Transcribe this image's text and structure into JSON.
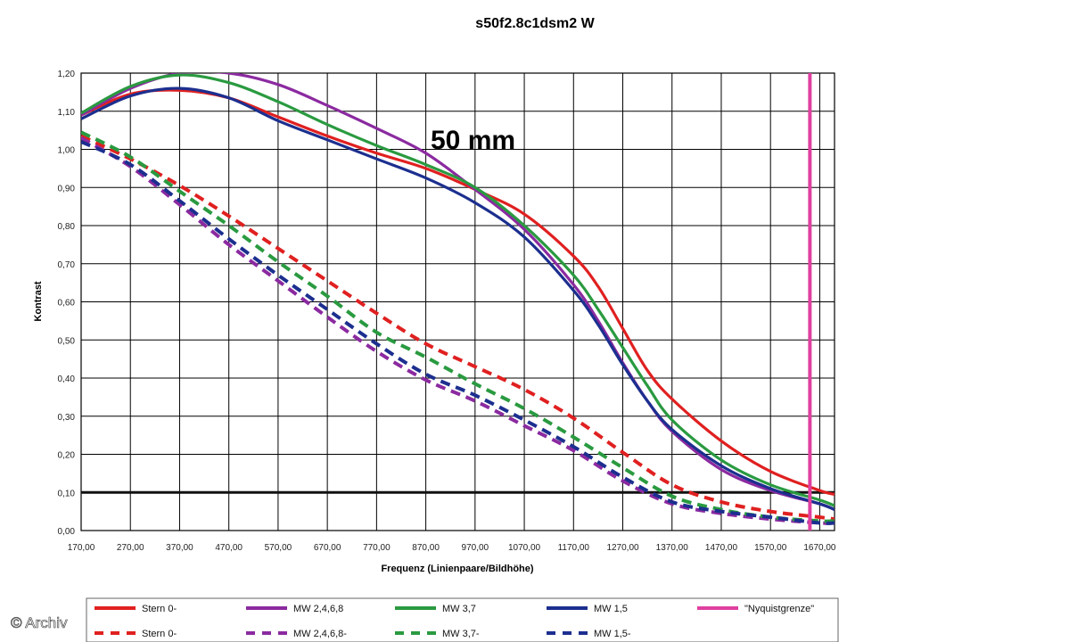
{
  "chart_data": {
    "type": "line",
    "title": "s50f2.8c1dsm2 W",
    "xlabel": "Frequenz (Linienpaare/Bildhöhe)",
    "ylabel": "Kontrast",
    "xlim": [
      170,
      1700
    ],
    "ylim": [
      0,
      1.2
    ],
    "x_ticks": [
      "170,00",
      "270,00",
      "370,00",
      "470,00",
      "570,00",
      "670,00",
      "770,00",
      "870,00",
      "970,00",
      "1070,00",
      "1170,00",
      "1270,00",
      "1370,00",
      "1470,00",
      "1570,00",
      "1670,00"
    ],
    "y_ticks": [
      "0,00",
      "0,10",
      "0,20",
      "0,30",
      "0,40",
      "0,50",
      "0,60",
      "0,70",
      "0,80",
      "0,90",
      "1,00",
      "1,10",
      "1,20"
    ],
    "grid": true,
    "annotation": "50 mm",
    "reference_line_y": 0.1,
    "legend_position": "bottom",
    "series": [
      {
        "name": "Stern 0-",
        "color": "#e02020",
        "dashed": false,
        "x": [
          170,
          270,
          370,
          470,
          570,
          670,
          770,
          870,
          970,
          1070,
          1170,
          1220,
          1270,
          1320,
          1370,
          1470,
          1570,
          1670,
          1700
        ],
        "y": [
          1.09,
          1.145,
          1.155,
          1.135,
          1.085,
          1.035,
          0.99,
          0.95,
          0.895,
          0.83,
          0.72,
          0.64,
          0.53,
          0.42,
          0.345,
          0.235,
          0.155,
          0.105,
          0.095
        ]
      },
      {
        "name": "MW 2,4,6,8",
        "color": "#8b2aa0",
        "dashed": false,
        "x": [
          170,
          270,
          370,
          470,
          570,
          670,
          770,
          870,
          970,
          1070,
          1170,
          1220,
          1270,
          1320,
          1370,
          1470,
          1570,
          1670,
          1700
        ],
        "y": [
          1.09,
          1.16,
          1.2,
          1.2,
          1.17,
          1.115,
          1.055,
          0.99,
          0.895,
          0.79,
          0.645,
          0.55,
          0.44,
          0.34,
          0.26,
          0.16,
          0.105,
          0.07,
          0.055
        ]
      },
      {
        "name": "MW 3,7",
        "color": "#2a9a40",
        "dashed": false,
        "x": [
          170,
          270,
          370,
          470,
          570,
          670,
          770,
          870,
          970,
          1070,
          1170,
          1220,
          1270,
          1320,
          1370,
          1470,
          1570,
          1670,
          1700
        ],
        "y": [
          1.095,
          1.165,
          1.195,
          1.175,
          1.125,
          1.065,
          1.01,
          0.96,
          0.9,
          0.8,
          0.67,
          0.58,
          0.48,
          0.38,
          0.29,
          0.185,
          0.12,
          0.08,
          0.065
        ]
      },
      {
        "name": "MW 1,5",
        "color": "#1c2f8f",
        "dashed": false,
        "x": [
          170,
          270,
          370,
          470,
          570,
          670,
          770,
          870,
          970,
          1070,
          1170,
          1220,
          1270,
          1320,
          1370,
          1470,
          1570,
          1670,
          1700
        ],
        "y": [
          1.08,
          1.14,
          1.16,
          1.135,
          1.075,
          1.025,
          0.975,
          0.925,
          0.86,
          0.77,
          0.63,
          0.54,
          0.435,
          0.34,
          0.265,
          0.17,
          0.11,
          0.07,
          0.055
        ]
      },
      {
        "name": "Stern 0-",
        "color": "#e02020",
        "dashed": true,
        "x": [
          170,
          270,
          370,
          470,
          570,
          670,
          770,
          870,
          970,
          1070,
          1170,
          1270,
          1370,
          1470,
          1570,
          1670,
          1700
        ],
        "y": [
          1.035,
          0.975,
          0.905,
          0.825,
          0.74,
          0.655,
          0.57,
          0.49,
          0.43,
          0.37,
          0.295,
          0.205,
          0.12,
          0.075,
          0.05,
          0.035,
          0.03
        ]
      },
      {
        "name": "MW 2,4,6,8-",
        "color": "#8b2aa0",
        "dashed": true,
        "x": [
          170,
          270,
          370,
          470,
          570,
          670,
          770,
          870,
          970,
          1070,
          1170,
          1270,
          1370,
          1470,
          1570,
          1670,
          1700
        ],
        "y": [
          1.03,
          0.955,
          0.855,
          0.75,
          0.655,
          0.56,
          0.47,
          0.395,
          0.34,
          0.275,
          0.21,
          0.13,
          0.07,
          0.045,
          0.03,
          0.02,
          0.02
        ]
      },
      {
        "name": "MW 3,7-",
        "color": "#2a9a40",
        "dashed": true,
        "x": [
          170,
          270,
          370,
          470,
          570,
          670,
          770,
          870,
          970,
          1070,
          1170,
          1270,
          1370,
          1470,
          1570,
          1670,
          1700
        ],
        "y": [
          1.045,
          0.98,
          0.89,
          0.8,
          0.705,
          0.615,
          0.52,
          0.455,
          0.385,
          0.32,
          0.245,
          0.165,
          0.09,
          0.055,
          0.035,
          0.025,
          0.025
        ]
      },
      {
        "name": "MW 1,5-",
        "color": "#1c2f8f",
        "dashed": true,
        "x": [
          170,
          270,
          370,
          470,
          570,
          670,
          770,
          870,
          970,
          1070,
          1170,
          1270,
          1370,
          1470,
          1570,
          1670,
          1700
        ],
        "y": [
          1.02,
          0.96,
          0.865,
          0.765,
          0.67,
          0.58,
          0.49,
          0.41,
          0.355,
          0.29,
          0.22,
          0.14,
          0.075,
          0.05,
          0.035,
          0.02,
          0.02
        ]
      },
      {
        "name": "\"Nyquistgrenze\"",
        "color": "#e040a0",
        "dashed": false,
        "vertical_at_x": 1650
      }
    ]
  },
  "watermark": "© Archiv"
}
